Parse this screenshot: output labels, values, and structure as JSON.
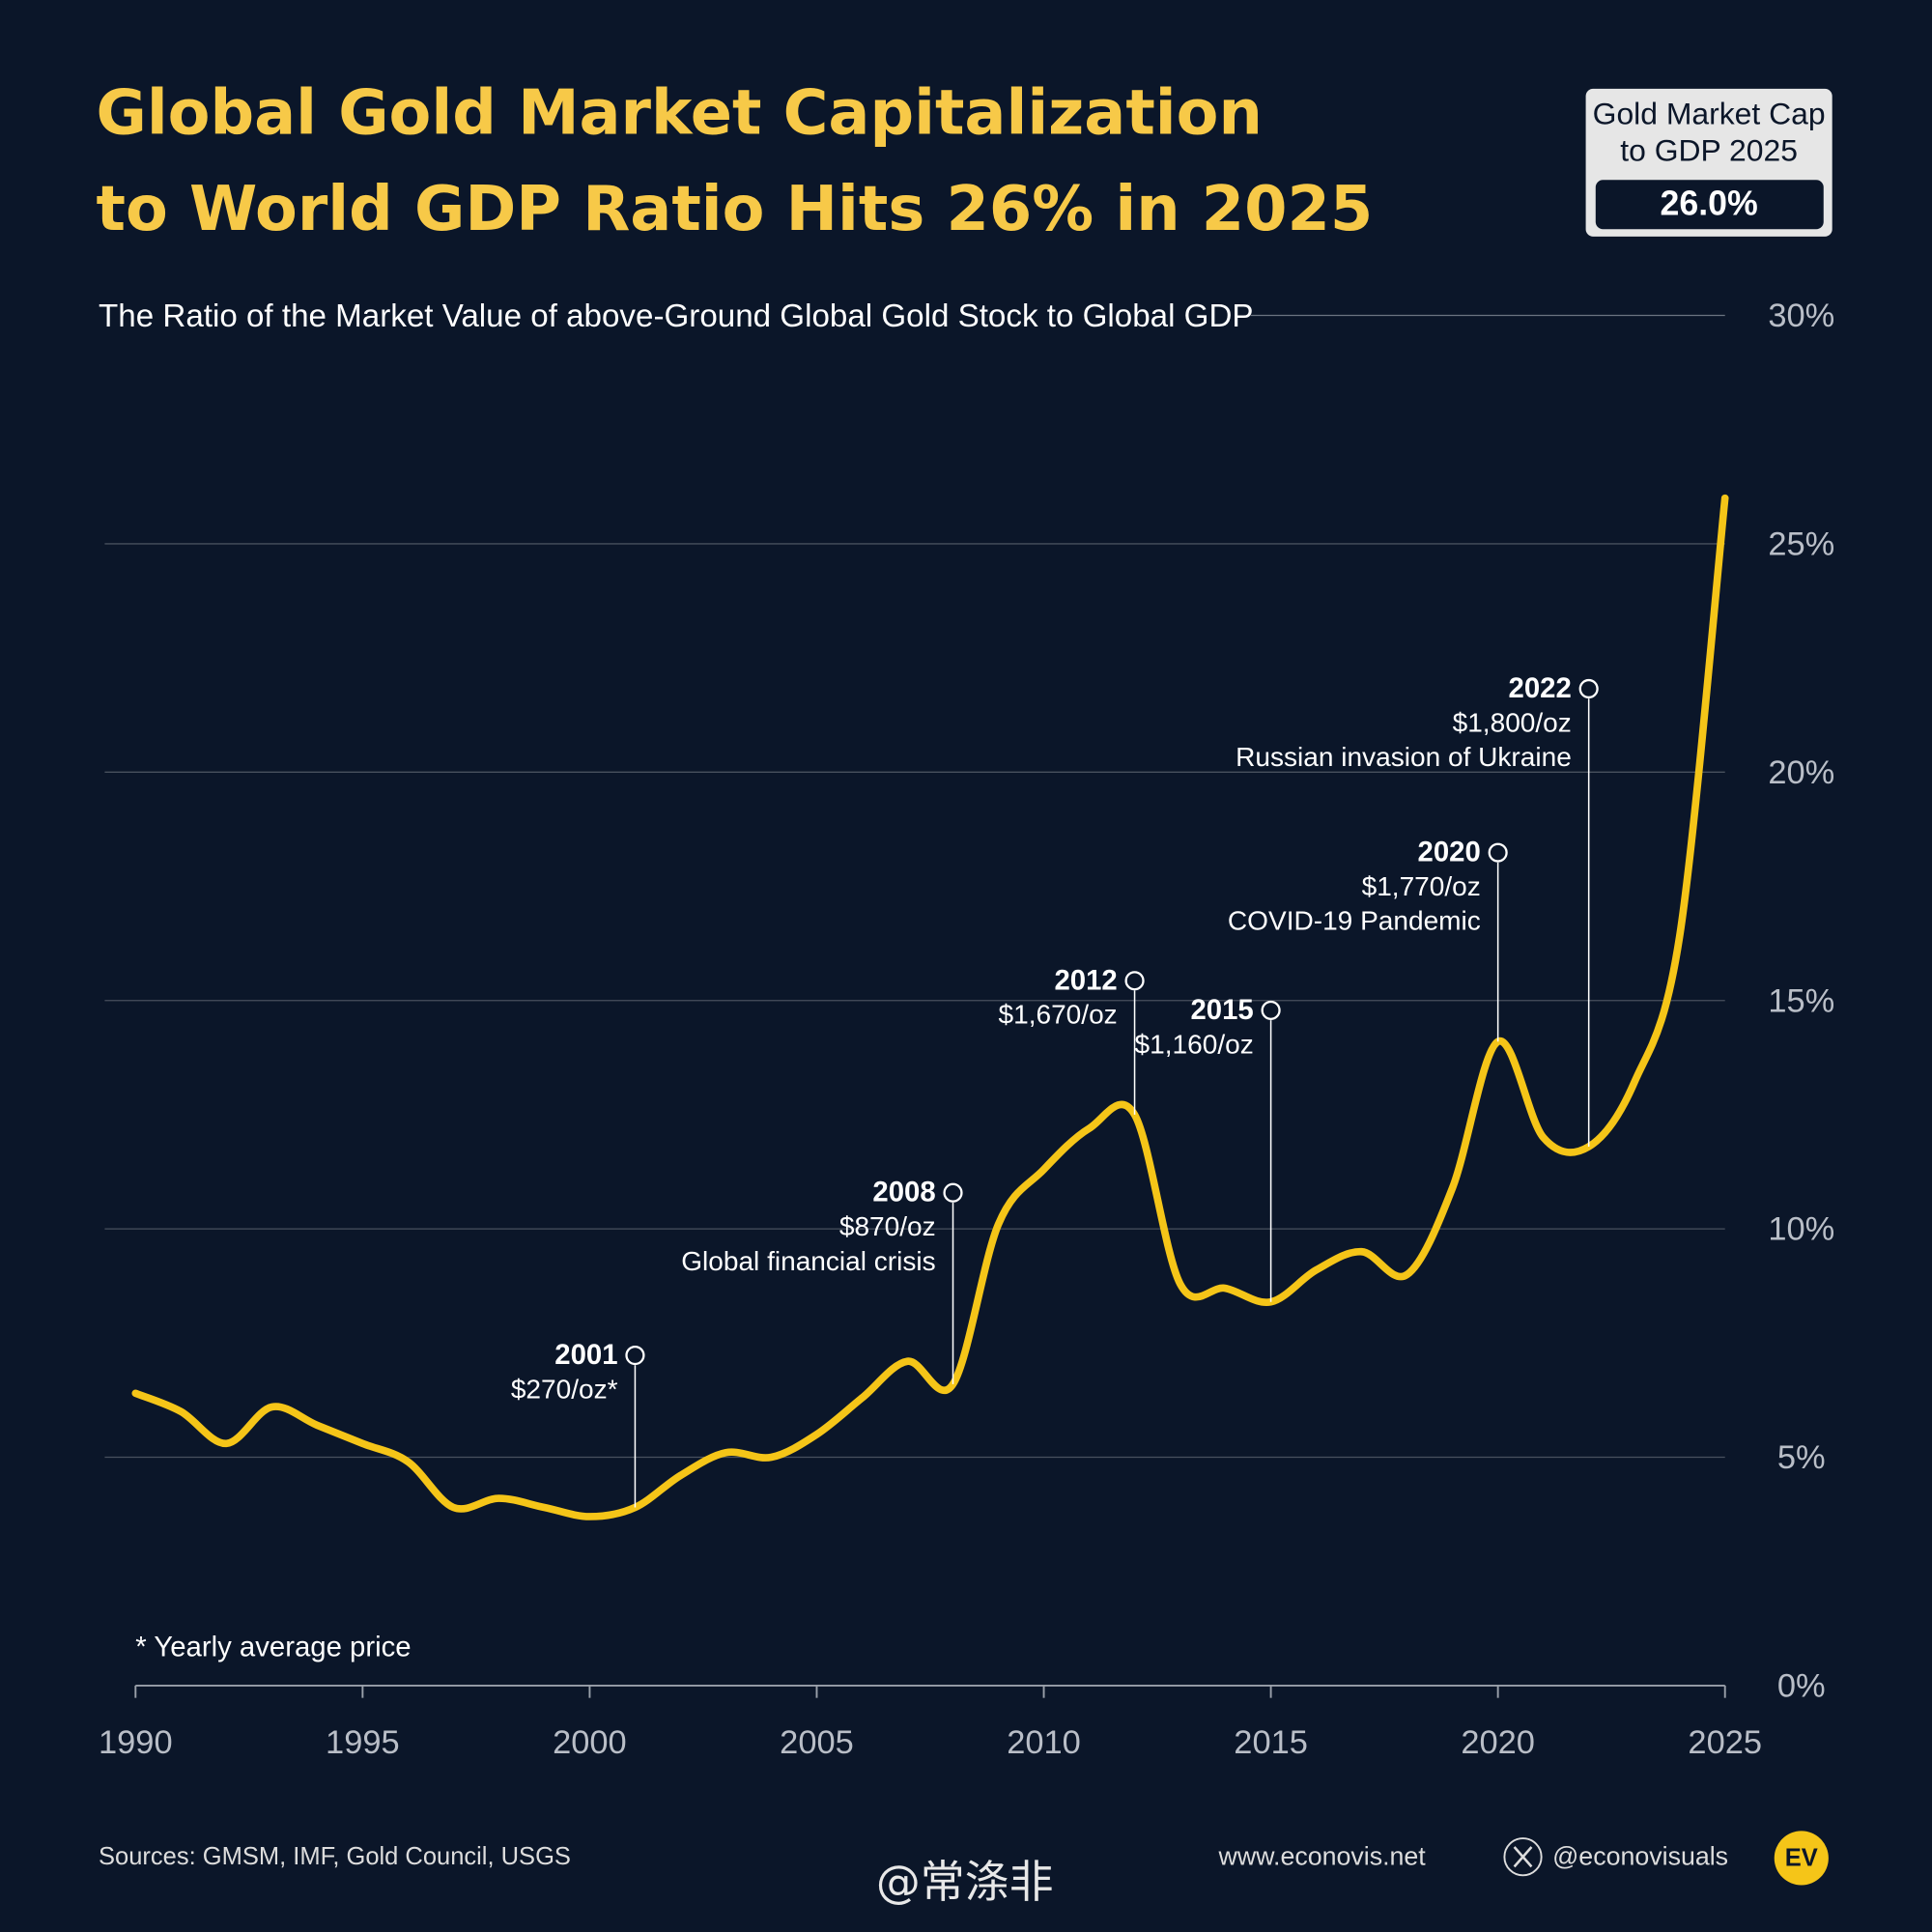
{
  "chart_data": {
    "type": "line",
    "title": [
      "Global Gold Market Capitalization",
      "to World GDP Ratio Hits 26% in 2025"
    ],
    "subtitle": "The Ratio of the Market Value of above-Ground Global Gold Stock to Global GDP",
    "badge": {
      "lines": [
        "Gold Market Cap",
        "to GDP 2025"
      ],
      "text": "26.0%"
    },
    "x": [
      1990,
      1991,
      1992,
      1993,
      1994,
      1995,
      1996,
      1997,
      1998,
      1999,
      2000,
      2001,
      2002,
      2003,
      2004,
      2005,
      2006,
      2007,
      2008,
      2009,
      2010,
      2011,
      2012,
      2013,
      2014,
      2015,
      2016,
      2017,
      2018,
      2019,
      2020,
      2021,
      2022,
      2023,
      2024,
      2025
    ],
    "values": [
      6.4,
      6.0,
      5.3,
      6.1,
      5.7,
      5.3,
      4.9,
      3.9,
      4.1,
      3.9,
      3.7,
      3.9,
      4.6,
      5.1,
      5.0,
      5.5,
      6.3,
      7.1,
      6.6,
      10.1,
      11.3,
      12.2,
      12.5,
      8.8,
      8.7,
      8.4,
      9.1,
      9.5,
      9.0,
      10.9,
      14.1,
      12.0,
      11.8,
      13.2,
      16.4,
      26.0
    ],
    "color": "#f5c518",
    "xlim": [
      1990,
      2025
    ],
    "xticks": [
      1990,
      1995,
      2000,
      2005,
      2010,
      2015,
      2020,
      2025
    ],
    "ylim": [
      0,
      30
    ],
    "yticks": [
      {
        "value": 0,
        "label": "0%"
      },
      {
        "value": 5,
        "label": "5%"
      },
      {
        "value": 10,
        "label": "10%"
      },
      {
        "value": 15,
        "label": "15%"
      },
      {
        "value": 20,
        "label": "20%"
      },
      {
        "value": 25,
        "label": "25%"
      },
      {
        "value": 30,
        "label": "30%"
      }
    ],
    "grid": true,
    "annotations": [
      {
        "x": 2001,
        "price": "$270/oz*"
      },
      {
        "x": 2008,
        "price": "$870/oz",
        "note": "Global financial crisis"
      },
      {
        "x": 2012,
        "price": "$1,670/oz"
      },
      {
        "x": 2015,
        "price": "$1,160/oz"
      },
      {
        "x": 2020,
        "price": "$1,770/oz",
        "note": "COVID-19 Pandemic"
      },
      {
        "x": 2022,
        "price": "$1,800/oz",
        "note": "Russian invasion of Ukraine"
      }
    ],
    "footnote": "* Yearly average price",
    "sources": "Sources: GMSM, IMF, Gold Council, USGS",
    "website": "www.econovis.net",
    "handle": "@econovisuals",
    "logo": "EV",
    "watermark": "@常涤非"
  }
}
